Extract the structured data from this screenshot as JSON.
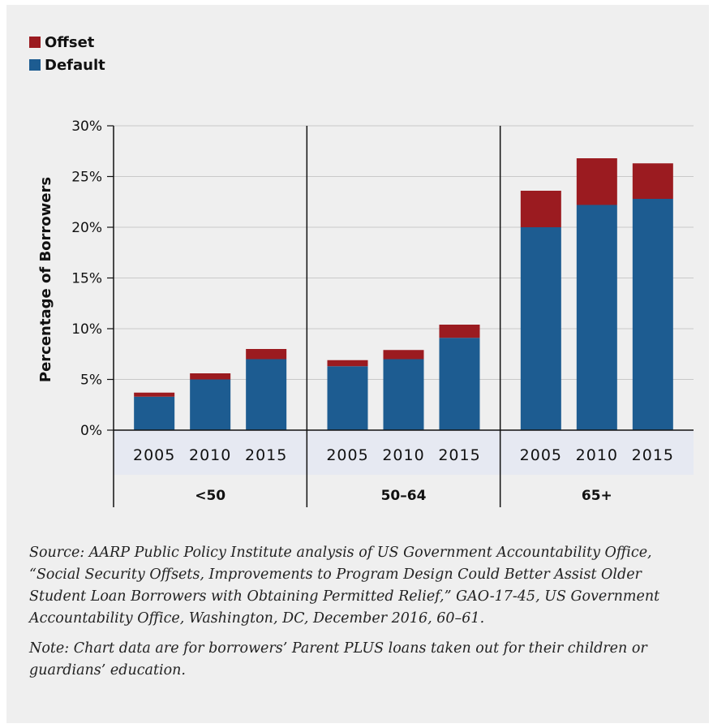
{
  "chart_data": {
    "type": "bar",
    "stacked": true,
    "title": "",
    "ylabel": "Percentage of Borrowers",
    "xlabel": "",
    "ylim": [
      0,
      30
    ],
    "yticks": [
      "0%",
      "5%",
      "10%",
      "15%",
      "20%",
      "25%",
      "30%"
    ],
    "grid": true,
    "legend_position": "top-left",
    "colors": {
      "Offset": "#9b1b20",
      "Default": "#1d5c91"
    },
    "groups": [
      {
        "label": "<50",
        "categories": [
          "2005",
          "2010",
          "2015"
        ],
        "default": [
          3.3,
          5.0,
          7.0
        ],
        "offset": [
          0.4,
          0.6,
          1.0
        ]
      },
      {
        "label": "50–64",
        "categories": [
          "2005",
          "2010",
          "2015"
        ],
        "default": [
          6.3,
          7.0,
          9.1
        ],
        "offset": [
          0.6,
          0.9,
          1.3
        ]
      },
      {
        "label": "65+",
        "categories": [
          "2005",
          "2010",
          "2015"
        ],
        "default": [
          20.0,
          22.2,
          22.8
        ],
        "offset": [
          3.6,
          4.6,
          3.5
        ]
      }
    ],
    "series": [
      {
        "name": "Offset"
      },
      {
        "name": "Default"
      }
    ]
  },
  "notes": {
    "source": "Source: AARP Public Policy Institute analysis of US Government Accountability Office, “Social Security Offsets, Improvements to Program Design Could Better Assist Older Student Loan Borrowers with Obtaining Permitted Relief,” GAO-17-45, US Government Accountability Office, Washington, DC, December 2016, 60–61.",
    "note": "Note: Chart data are for borrowers’ Parent PLUS loans taken out for their children or guardians’ education."
  }
}
